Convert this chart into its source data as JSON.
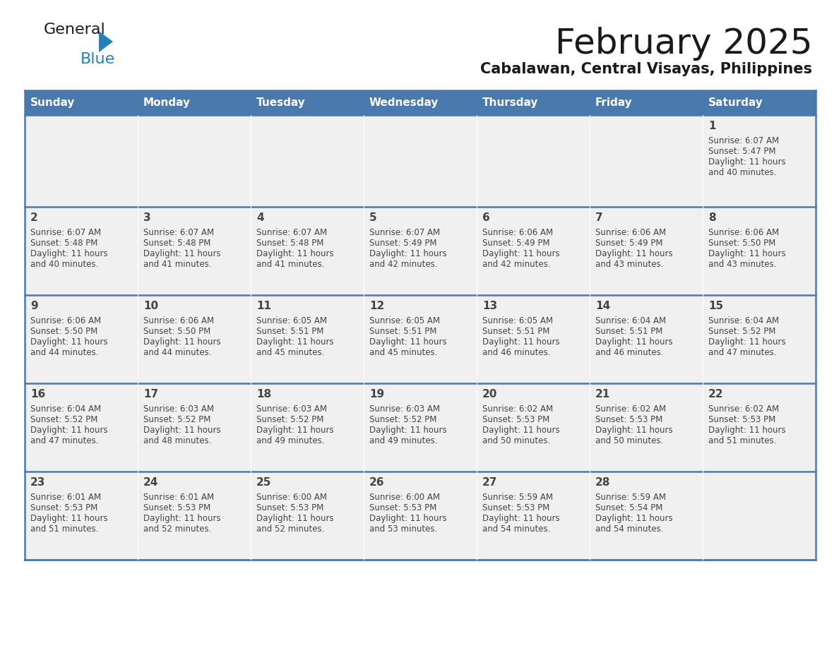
{
  "title": "February 2025",
  "subtitle": "Cabalawan, Central Visayas, Philippines",
  "header_bg": "#4a7aad",
  "header_text": "#ffffff",
  "cell_bg": "#f0f0f0",
  "day_names": [
    "Sunday",
    "Monday",
    "Tuesday",
    "Wednesday",
    "Thursday",
    "Friday",
    "Saturday"
  ],
  "title_color": "#1a1a1a",
  "subtitle_color": "#1a1a1a",
  "line_color": "#4a7aad",
  "text_color": "#444444",
  "logo_general_color": "#1a1a1a",
  "logo_blue_color": "#2980b9",
  "logo_triangle_color": "#2980b9",
  "days": [
    {
      "day": 1,
      "col": 6,
      "row": 0,
      "sunrise": "6:07 AM",
      "sunset": "5:47 PM",
      "daylight": "11 hours and 40 minutes."
    },
    {
      "day": 2,
      "col": 0,
      "row": 1,
      "sunrise": "6:07 AM",
      "sunset": "5:48 PM",
      "daylight": "11 hours and 40 minutes."
    },
    {
      "day": 3,
      "col": 1,
      "row": 1,
      "sunrise": "6:07 AM",
      "sunset": "5:48 PM",
      "daylight": "11 hours and 41 minutes."
    },
    {
      "day": 4,
      "col": 2,
      "row": 1,
      "sunrise": "6:07 AM",
      "sunset": "5:48 PM",
      "daylight": "11 hours and 41 minutes."
    },
    {
      "day": 5,
      "col": 3,
      "row": 1,
      "sunrise": "6:07 AM",
      "sunset": "5:49 PM",
      "daylight": "11 hours and 42 minutes."
    },
    {
      "day": 6,
      "col": 4,
      "row": 1,
      "sunrise": "6:06 AM",
      "sunset": "5:49 PM",
      "daylight": "11 hours and 42 minutes."
    },
    {
      "day": 7,
      "col": 5,
      "row": 1,
      "sunrise": "6:06 AM",
      "sunset": "5:49 PM",
      "daylight": "11 hours and 43 minutes."
    },
    {
      "day": 8,
      "col": 6,
      "row": 1,
      "sunrise": "6:06 AM",
      "sunset": "5:50 PM",
      "daylight": "11 hours and 43 minutes."
    },
    {
      "day": 9,
      "col": 0,
      "row": 2,
      "sunrise": "6:06 AM",
      "sunset": "5:50 PM",
      "daylight": "11 hours and 44 minutes."
    },
    {
      "day": 10,
      "col": 1,
      "row": 2,
      "sunrise": "6:06 AM",
      "sunset": "5:50 PM",
      "daylight": "11 hours and 44 minutes."
    },
    {
      "day": 11,
      "col": 2,
      "row": 2,
      "sunrise": "6:05 AM",
      "sunset": "5:51 PM",
      "daylight": "11 hours and 45 minutes."
    },
    {
      "day": 12,
      "col": 3,
      "row": 2,
      "sunrise": "6:05 AM",
      "sunset": "5:51 PM",
      "daylight": "11 hours and 45 minutes."
    },
    {
      "day": 13,
      "col": 4,
      "row": 2,
      "sunrise": "6:05 AM",
      "sunset": "5:51 PM",
      "daylight": "11 hours and 46 minutes."
    },
    {
      "day": 14,
      "col": 5,
      "row": 2,
      "sunrise": "6:04 AM",
      "sunset": "5:51 PM",
      "daylight": "11 hours and 46 minutes."
    },
    {
      "day": 15,
      "col": 6,
      "row": 2,
      "sunrise": "6:04 AM",
      "sunset": "5:52 PM",
      "daylight": "11 hours and 47 minutes."
    },
    {
      "day": 16,
      "col": 0,
      "row": 3,
      "sunrise": "6:04 AM",
      "sunset": "5:52 PM",
      "daylight": "11 hours and 47 minutes."
    },
    {
      "day": 17,
      "col": 1,
      "row": 3,
      "sunrise": "6:03 AM",
      "sunset": "5:52 PM",
      "daylight": "11 hours and 48 minutes."
    },
    {
      "day": 18,
      "col": 2,
      "row": 3,
      "sunrise": "6:03 AM",
      "sunset": "5:52 PM",
      "daylight": "11 hours and 49 minutes."
    },
    {
      "day": 19,
      "col": 3,
      "row": 3,
      "sunrise": "6:03 AM",
      "sunset": "5:52 PM",
      "daylight": "11 hours and 49 minutes."
    },
    {
      "day": 20,
      "col": 4,
      "row": 3,
      "sunrise": "6:02 AM",
      "sunset": "5:53 PM",
      "daylight": "11 hours and 50 minutes."
    },
    {
      "day": 21,
      "col": 5,
      "row": 3,
      "sunrise": "6:02 AM",
      "sunset": "5:53 PM",
      "daylight": "11 hours and 50 minutes."
    },
    {
      "day": 22,
      "col": 6,
      "row": 3,
      "sunrise": "6:02 AM",
      "sunset": "5:53 PM",
      "daylight": "11 hours and 51 minutes."
    },
    {
      "day": 23,
      "col": 0,
      "row": 4,
      "sunrise": "6:01 AM",
      "sunset": "5:53 PM",
      "daylight": "11 hours and 51 minutes."
    },
    {
      "day": 24,
      "col": 1,
      "row": 4,
      "sunrise": "6:01 AM",
      "sunset": "5:53 PM",
      "daylight": "11 hours and 52 minutes."
    },
    {
      "day": 25,
      "col": 2,
      "row": 4,
      "sunrise": "6:00 AM",
      "sunset": "5:53 PM",
      "daylight": "11 hours and 52 minutes."
    },
    {
      "day": 26,
      "col": 3,
      "row": 4,
      "sunrise": "6:00 AM",
      "sunset": "5:53 PM",
      "daylight": "11 hours and 53 minutes."
    },
    {
      "day": 27,
      "col": 4,
      "row": 4,
      "sunrise": "5:59 AM",
      "sunset": "5:53 PM",
      "daylight": "11 hours and 54 minutes."
    },
    {
      "day": 28,
      "col": 5,
      "row": 4,
      "sunrise": "5:59 AM",
      "sunset": "5:54 PM",
      "daylight": "11 hours and 54 minutes."
    }
  ]
}
